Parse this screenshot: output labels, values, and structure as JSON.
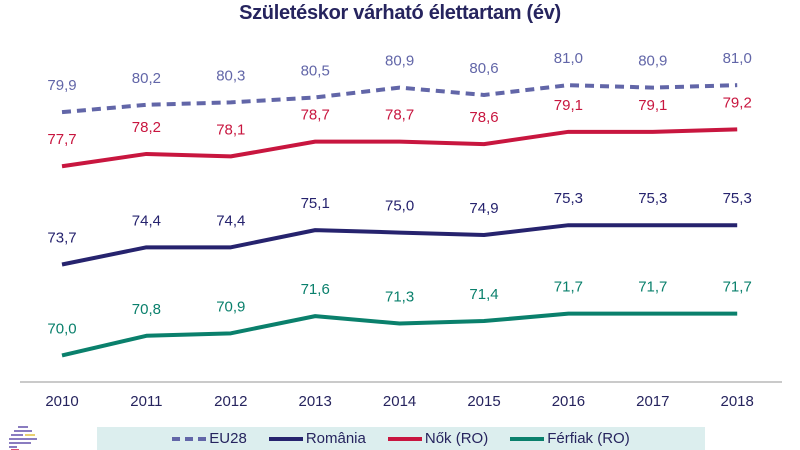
{
  "chart_data": {
    "type": "line",
    "title": "Születéskor várható élettartam (év)",
    "categories": [
      "2010",
      "2011",
      "2012",
      "2013",
      "2014",
      "2015",
      "2016",
      "2017",
      "2018"
    ],
    "ylim": [
      69,
      83
    ],
    "grid": false,
    "legend_position": "bottom",
    "series": [
      {
        "name": "EU28",
        "color": "#6266a8",
        "dashed": true,
        "values": [
          79.9,
          80.2,
          80.3,
          80.5,
          80.9,
          80.6,
          81.0,
          80.9,
          81.0
        ],
        "labels": [
          "79,9",
          "80,2",
          "80,3",
          "80,5",
          "80,9",
          "80,6",
          "81,0",
          "80,9",
          "81,0"
        ]
      },
      {
        "name": "Nők (RO)",
        "color": "#c8163f",
        "dashed": false,
        "values": [
          77.7,
          78.2,
          78.1,
          78.7,
          78.7,
          78.6,
          79.1,
          79.1,
          79.2
        ],
        "labels": [
          "77,7",
          "78,2",
          "78,1",
          "78,7",
          "78,7",
          "78,6",
          "79,1",
          "79,1",
          "79,2"
        ]
      },
      {
        "name": "România",
        "color": "#26236e",
        "dashed": false,
        "values": [
          73.7,
          74.4,
          74.4,
          75.1,
          75.0,
          74.9,
          75.3,
          75.3,
          75.3
        ],
        "labels": [
          "73,7",
          "74,4",
          "74,4",
          "75,1",
          "75,0",
          "74,9",
          "75,3",
          "75,3",
          "75,3"
        ]
      },
      {
        "name": "Férfiak (RO)",
        "color": "#0a806c",
        "dashed": false,
        "values": [
          70.0,
          70.8,
          70.9,
          71.6,
          71.3,
          71.4,
          71.7,
          71.7,
          71.7
        ],
        "labels": [
          "70,0",
          "70,8",
          "70,9",
          "71,6",
          "71,3",
          "71,4",
          "71,7",
          "71,7",
          "71,7"
        ]
      }
    ]
  },
  "legend": [
    {
      "label": "EU28",
      "color": "#6266a8",
      "dashed": true
    },
    {
      "label": "România",
      "color": "#26236e",
      "dashed": false
    },
    {
      "label": "Nők (RO)",
      "color": "#c8163f",
      "dashed": false
    },
    {
      "label": "Férfiak (RO)",
      "color": "#0a806c",
      "dashed": false
    }
  ]
}
